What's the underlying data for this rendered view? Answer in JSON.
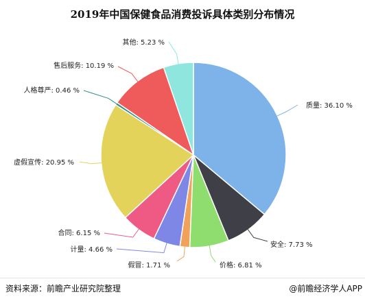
{
  "chart_data": {
    "type": "pie",
    "title": "2019年中国保健食品消费投诉具体类别分布情况",
    "slices": [
      {
        "label": "质量",
        "value": 36.1,
        "text": "质量: 36.10 %",
        "color": "#7eb3ea"
      },
      {
        "label": "安全",
        "value": 7.73,
        "text": "安全: 7.73 %",
        "color": "#3f3f47"
      },
      {
        "label": "价格",
        "value": 6.81,
        "text": "价格: 6.81 %",
        "color": "#8fdd6e"
      },
      {
        "label": "假冒",
        "value": 1.71,
        "text": "假冒: 1.71 %",
        "color": "#f1a25a"
      },
      {
        "label": "计量",
        "value": 4.66,
        "text": "计量: 4.66 %",
        "color": "#7e86e6"
      },
      {
        "label": "合同",
        "value": 6.15,
        "text": "合同: 6.15 %",
        "color": "#ef5a85"
      },
      {
        "label": "虚假宣传",
        "value": 20.95,
        "text": "虚假宣传: 20.95 %",
        "color": "#e4d35a"
      },
      {
        "label": "人格尊严",
        "value": 0.46,
        "text": "人格尊严: 0.46 %",
        "color": "#2d8f8b"
      },
      {
        "label": "售后服务",
        "value": 10.19,
        "text": "售后服务: 10.19 %",
        "color": "#ef5a5a"
      },
      {
        "label": "其他",
        "value": 5.23,
        "text": "其他: 5.23 %",
        "color": "#8ee6de"
      }
    ]
  },
  "footer": {
    "source": "资料来源：前瞻产业研究院整理",
    "brand": "@前瞻经济学人APP"
  }
}
